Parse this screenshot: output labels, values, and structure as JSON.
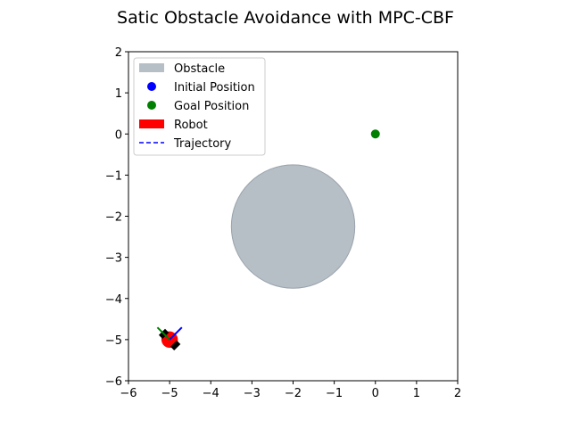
{
  "chart_data": {
    "type": "scatter",
    "title": "Satic Obstacle Avoidance with MPC-CBF",
    "xlabel": "",
    "ylabel": "",
    "xlim": [
      -6,
      2
    ],
    "ylim": [
      -6,
      2
    ],
    "xticks": [
      -6,
      -5,
      -4,
      -3,
      -2,
      -1,
      0,
      1,
      2
    ],
    "yticks": [
      -6,
      -5,
      -4,
      -3,
      -2,
      -1,
      0,
      1,
      2
    ],
    "xtick_labels": [
      "−6",
      "−5",
      "−4",
      "−3",
      "−2",
      "−1",
      "0",
      "1",
      "2"
    ],
    "ytick_labels": [
      "−6",
      "−5",
      "−4",
      "−3",
      "−2",
      "−1",
      "0",
      "1",
      "2"
    ],
    "grid": false,
    "legend_position": "top-left",
    "legend": [
      {
        "label": "Obstacle",
        "kind": "patch",
        "color": "#b6bec6"
      },
      {
        "label": "Initial Position",
        "kind": "marker",
        "color": "#0000ff"
      },
      {
        "label": "Goal Position",
        "kind": "marker",
        "color": "#008000"
      },
      {
        "label": "Robot",
        "kind": "patch",
        "color": "#ff0000"
      },
      {
        "label": "Trajectory",
        "kind": "dashed-line",
        "color": "#0000ff"
      }
    ],
    "obstacle": {
      "center": [
        -2,
        -2.25
      ],
      "radius": 1.5,
      "color": "#b6bec6",
      "edge": "#9aa3ab"
    },
    "initial_position": {
      "x": -5,
      "y": -5,
      "color": "#0000ff"
    },
    "goal_position": {
      "x": 0,
      "y": 0,
      "color": "#008000"
    },
    "robot": {
      "x": -5,
      "y": -5,
      "radius": 0.2,
      "heading_deg": 45,
      "color": "#ff0000",
      "body_axis_color": "#0000ff",
      "side_axis_color": "#008000",
      "wheel_color": "#000000"
    },
    "trajectory": {
      "x": [],
      "y": [],
      "color": "#0000ff"
    }
  }
}
